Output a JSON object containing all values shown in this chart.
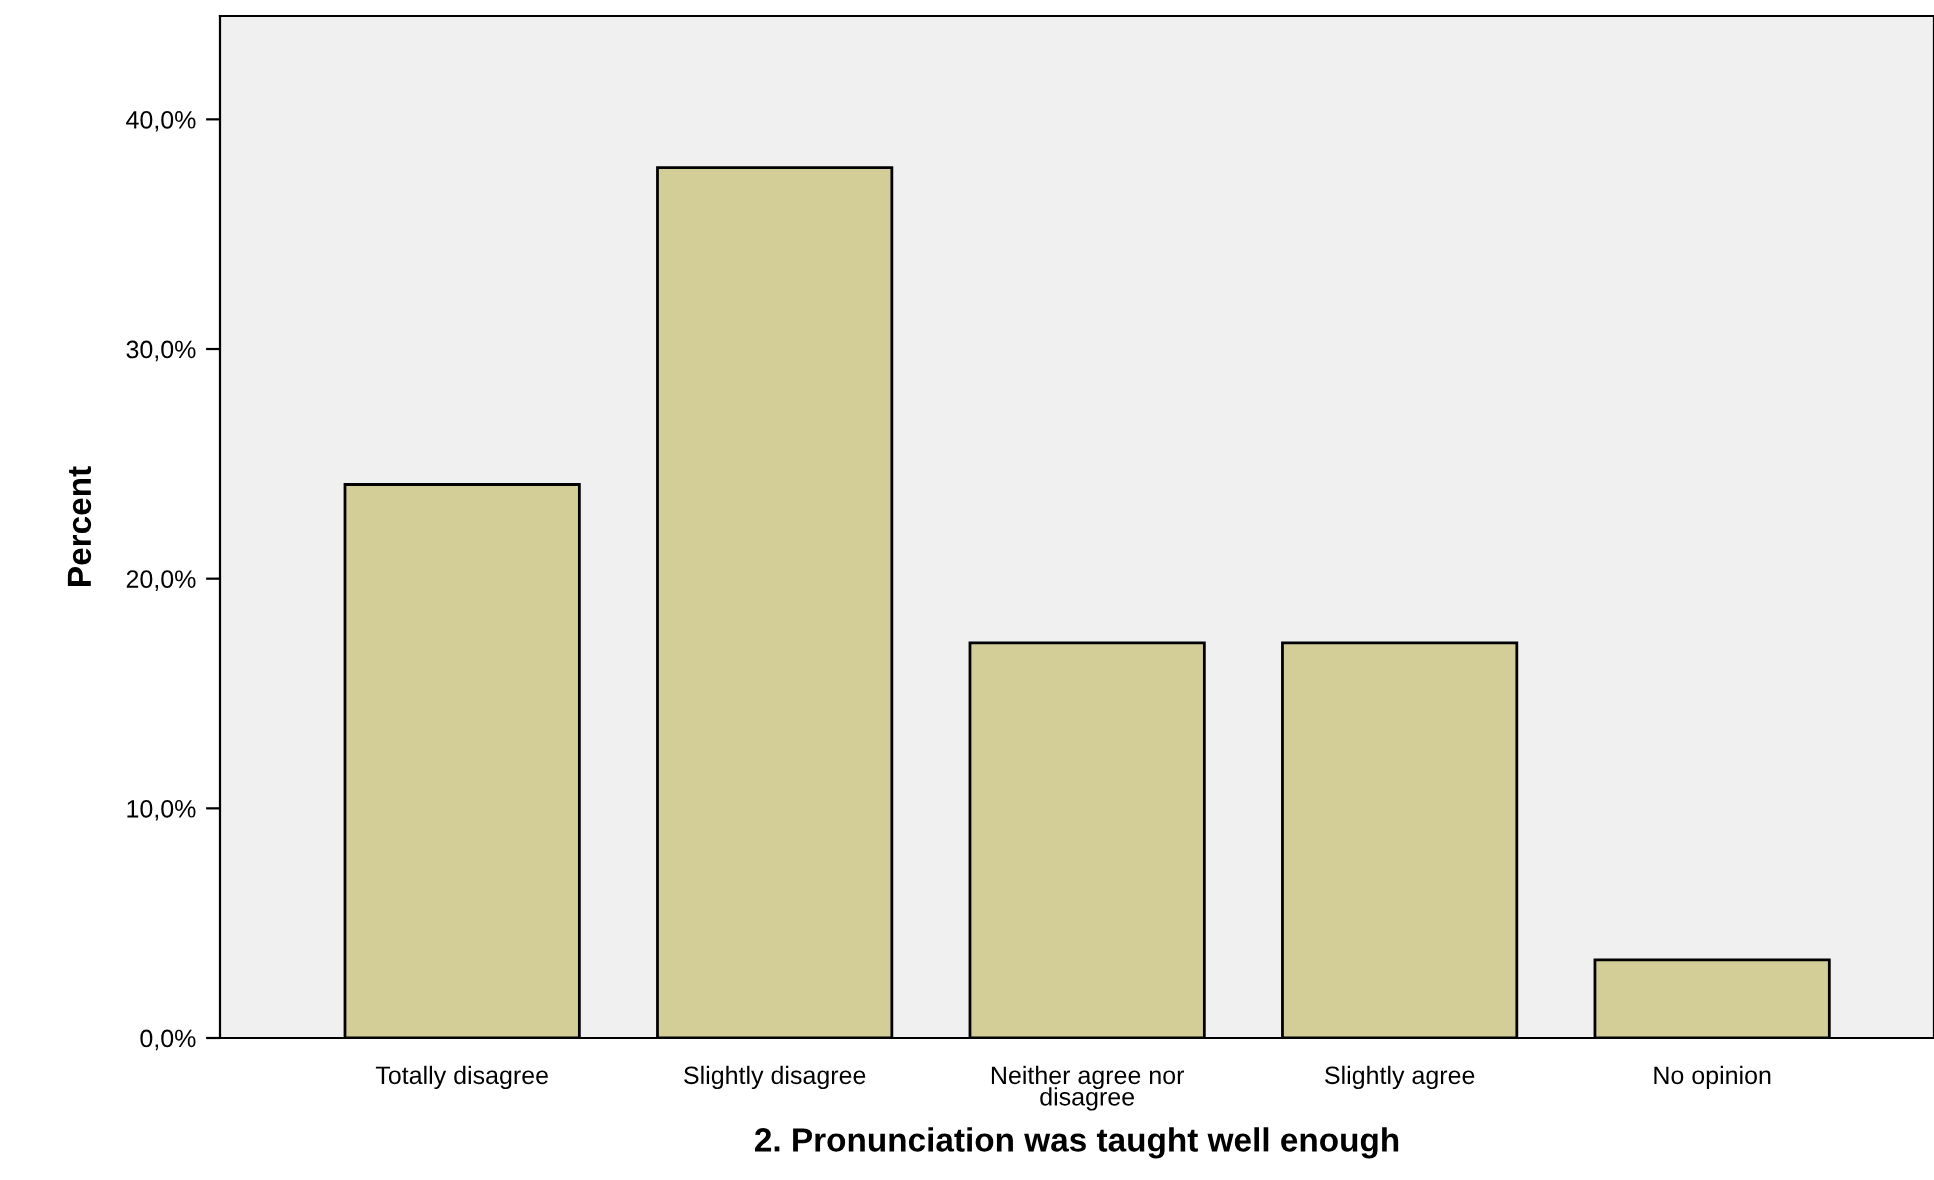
{
  "chart_data": {
    "type": "bar",
    "xlabel": "2. Pronunciation was taught well enough",
    "ylabel": "Percent",
    "categories": [
      "Totally disagree",
      "Slightly disagree",
      "Neither agree nor\ndisagree",
      "Slightly agree",
      "No opinion"
    ],
    "values": [
      24.1,
      37.9,
      17.2,
      17.2,
      3.4
    ],
    "color": "#d3ce97",
    "ylim": [
      0,
      44.5
    ],
    "yticks": [
      {
        "value": 0,
        "label": "0,0%"
      },
      {
        "value": 10,
        "label": "10,0%"
      },
      {
        "value": 20,
        "label": "20,0%"
      },
      {
        "value": 30,
        "label": "30,0%"
      },
      {
        "value": 40,
        "label": "40,0%"
      }
    ],
    "grid": false,
    "legend": false
  }
}
